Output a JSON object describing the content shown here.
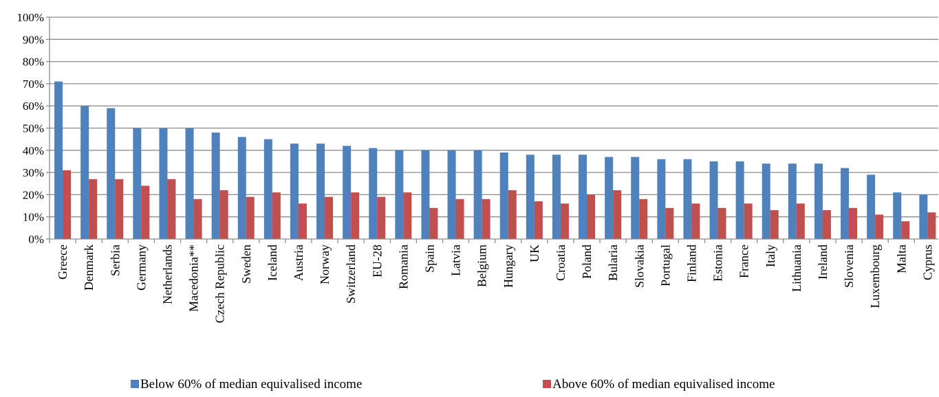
{
  "chart_data": {
    "type": "bar",
    "title": "",
    "xlabel": "",
    "ylabel": "",
    "ylim": [
      0,
      100
    ],
    "y_ticks": [
      "0%",
      "10%",
      "20%",
      "30%",
      "40%",
      "50%",
      "60%",
      "70%",
      "80%",
      "90%",
      "100%"
    ],
    "grid": true,
    "legend_position": "bottom",
    "categories": [
      "Greece",
      "Denmark",
      "Serbia",
      "Germany",
      "Netherlands",
      "Macedonia**",
      "Czech Republic",
      "Sweden",
      "Iceland",
      "Austria",
      "Norway",
      "Switzerland",
      "EU-28",
      "Romania",
      "Spain",
      "Latvia",
      "Belgium",
      "Hungary",
      "UK",
      "Croatia",
      "Poland",
      "Bularia",
      "Slovakia",
      "Portugal",
      "Finland",
      "Estonia",
      "France",
      "Italy",
      "Lithuania",
      "Ireland",
      "Slovenia",
      "Luxembourg",
      "Malta",
      "Cyprus"
    ],
    "series": [
      {
        "name": "Below 60% of median equivalised income",
        "color": "#4f81bd",
        "values": [
          71,
          60,
          59,
          50,
          50,
          50,
          48,
          46,
          45,
          43,
          43,
          42,
          41,
          40,
          40,
          40,
          40,
          39,
          38,
          38,
          38,
          37,
          37,
          36,
          36,
          35,
          35,
          34,
          34,
          34,
          32,
          29,
          21,
          20
        ]
      },
      {
        "name": "Above 60% of median equivalised income",
        "color": "#c0504d",
        "values": [
          31,
          27,
          27,
          24,
          27,
          18,
          22,
          19,
          21,
          16,
          19,
          21,
          19,
          21,
          14,
          18,
          18,
          22,
          17,
          16,
          20,
          22,
          18,
          14,
          16,
          14,
          16,
          13,
          16,
          13,
          14,
          11,
          8,
          12
        ]
      }
    ]
  }
}
